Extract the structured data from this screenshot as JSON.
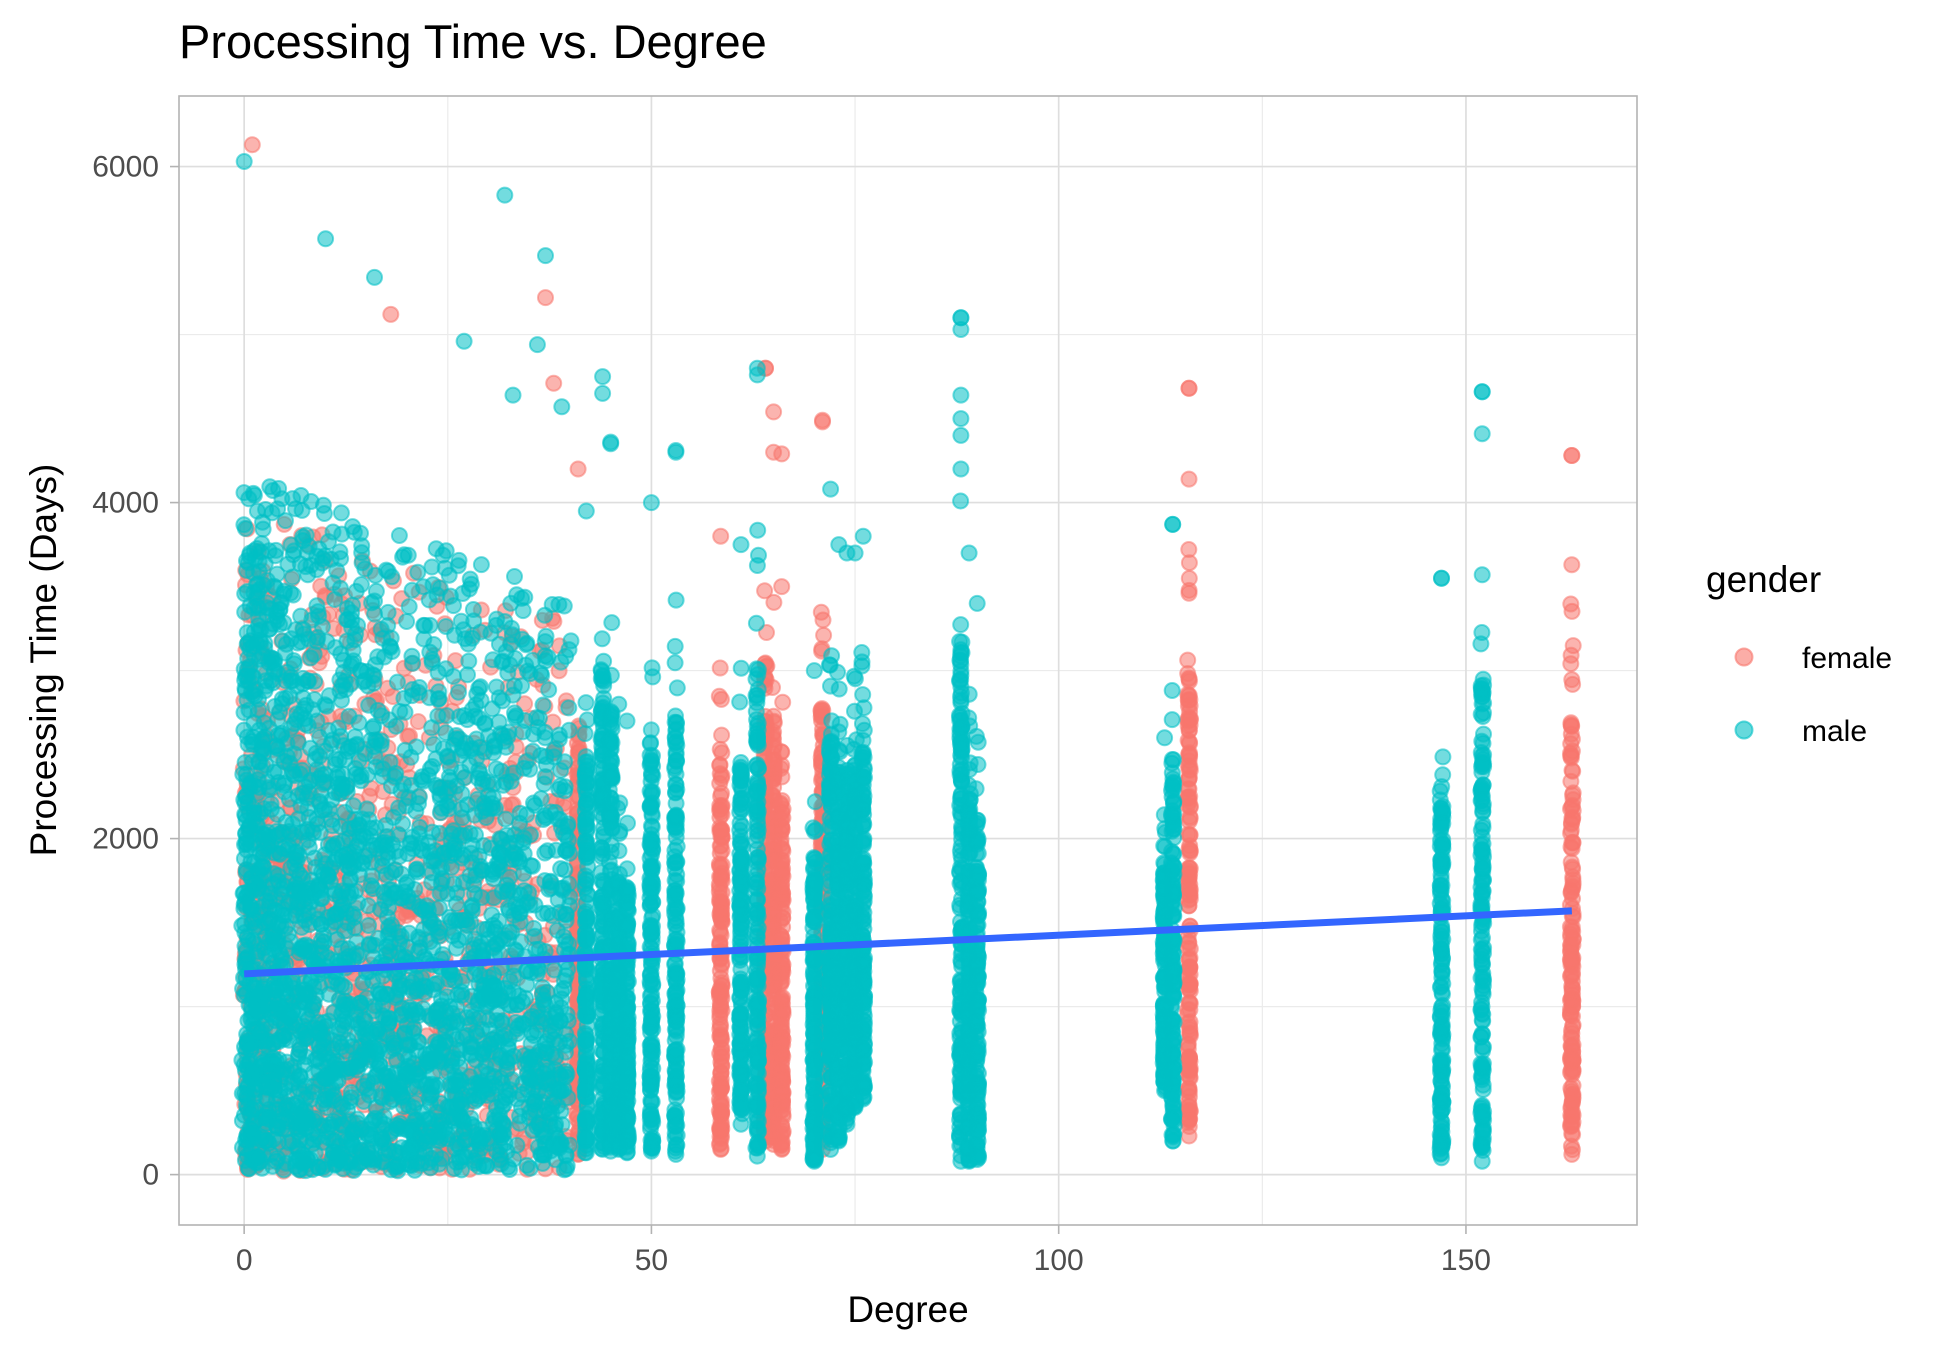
{
  "chart_data": {
    "type": "scatter",
    "title": "Processing Time vs. Degree",
    "xlabel": "Degree",
    "ylabel": "Processing Time (Days)",
    "xlim": [
      -8,
      171
    ],
    "ylim": [
      -300,
      6420
    ],
    "x_ticks": [
      0,
      50,
      100,
      150
    ],
    "y_ticks": [
      0,
      2000,
      4000,
      6000
    ],
    "x_tick_labels": [
      "0",
      "50",
      "100",
      "150"
    ],
    "y_tick_labels": [
      "0",
      "2000",
      "4000",
      "6000"
    ],
    "grid": true,
    "legend": {
      "title": "gender",
      "position": "right",
      "entries": [
        {
          "label": "female",
          "color": "#F8766D"
        },
        {
          "label": "male",
          "color": "#00BFC4"
        }
      ]
    },
    "colors": {
      "female": "#F8766D",
      "male": "#00BFC4",
      "trend": "#3366FF"
    },
    "point_opacity": 0.55,
    "trend_line": {
      "x": [
        0,
        163
      ],
      "y": [
        1195,
        1570
      ]
    },
    "dense_regions": [
      {
        "series": "male",
        "x": [
          0,
          40
        ],
        "y": [
          20,
          5200
        ],
        "count": 2600
      },
      {
        "series": "female",
        "x": [
          0,
          40
        ],
        "y": [
          20,
          5000
        ],
        "count": 1100
      }
    ],
    "columns": [
      {
        "x": 41,
        "series": "female",
        "y": [
          120,
          4200
        ]
      },
      {
        "x": 42,
        "series": "male",
        "y": [
          130,
          3950
        ]
      },
      {
        "x": 44,
        "series": "male",
        "y": [
          150,
          4750
        ]
      },
      {
        "x": 45,
        "series": "male",
        "y": [
          140,
          4350
        ]
      },
      {
        "x": 46,
        "series": "male",
        "y": [
          150,
          2800
        ]
      },
      {
        "x": 47,
        "series": "male",
        "y": [
          130,
          2700
        ]
      },
      {
        "x": 50,
        "series": "male",
        "y": [
          140,
          4000
        ]
      },
      {
        "x": 53,
        "series": "male",
        "y": [
          120,
          4300
        ]
      },
      {
        "x": 58.5,
        "series": "female",
        "y": [
          150,
          3800
        ]
      },
      {
        "x": 61,
        "series": "male",
        "y": [
          300,
          3750
        ]
      },
      {
        "x": 63,
        "series": "male",
        "y": [
          110,
          4800
        ]
      },
      {
        "x": 64,
        "series": "female",
        "y": [
          200,
          4800
        ]
      },
      {
        "x": 65,
        "series": "female",
        "y": [
          180,
          4300
        ]
      },
      {
        "x": 66,
        "series": "female",
        "y": [
          150,
          3500
        ]
      },
      {
        "x": 70,
        "series": "male",
        "y": [
          80,
          3000
        ]
      },
      {
        "x": 71,
        "series": "female",
        "y": [
          150,
          4480
        ]
      },
      {
        "x": 72,
        "series": "male",
        "y": [
          150,
          4080
        ]
      },
      {
        "x": 73,
        "series": "male",
        "y": [
          200,
          3750
        ]
      },
      {
        "x": 74,
        "series": "male",
        "y": [
          300,
          3700
        ]
      },
      {
        "x": 75,
        "series": "male",
        "y": [
          400,
          3700
        ]
      },
      {
        "x": 76,
        "series": "male",
        "y": [
          450,
          3800
        ]
      },
      {
        "x": 88,
        "series": "male",
        "y": [
          80,
          5100
        ]
      },
      {
        "x": 89,
        "series": "male",
        "y": [
          80,
          3700
        ]
      },
      {
        "x": 90,
        "series": "male",
        "y": [
          90,
          3400
        ]
      },
      {
        "x": 113,
        "series": "male",
        "y": [
          500,
          2600
        ]
      },
      {
        "x": 114,
        "series": "male",
        "y": [
          200,
          3870
        ]
      },
      {
        "x": 116,
        "series": "female",
        "y": [
          230,
          4680
        ]
      },
      {
        "x": 147,
        "series": "male",
        "y": [
          100,
          3550
        ]
      },
      {
        "x": 152,
        "series": "male",
        "y": [
          80,
          4660
        ]
      },
      {
        "x": 163,
        "series": "female",
        "y": [
          120,
          4280
        ]
      }
    ],
    "outliers": [
      {
        "x": 1,
        "y": 6130,
        "series": "female"
      },
      {
        "x": 0,
        "y": 6030,
        "series": "male"
      },
      {
        "x": 32,
        "y": 5830,
        "series": "male"
      },
      {
        "x": 37,
        "y": 5470,
        "series": "male"
      },
      {
        "x": 37,
        "y": 5220,
        "series": "female"
      },
      {
        "x": 16,
        "y": 5340,
        "series": "male"
      },
      {
        "x": 10,
        "y": 5570,
        "series": "male"
      },
      {
        "x": 18,
        "y": 5120,
        "series": "female"
      },
      {
        "x": 36,
        "y": 4940,
        "series": "male"
      },
      {
        "x": 27,
        "y": 4960,
        "series": "male"
      },
      {
        "x": 33,
        "y": 4640,
        "series": "male"
      },
      {
        "x": 38,
        "y": 4710,
        "series": "female"
      },
      {
        "x": 39,
        "y": 4570,
        "series": "male"
      },
      {
        "x": 44,
        "y": 4650,
        "series": "male"
      },
      {
        "x": 45,
        "y": 4360,
        "series": "male"
      },
      {
        "x": 53,
        "y": 4310,
        "series": "male"
      },
      {
        "x": 64,
        "y": 4800,
        "series": "female"
      },
      {
        "x": 63,
        "y": 4760,
        "series": "male"
      },
      {
        "x": 65,
        "y": 4540,
        "series": "female"
      },
      {
        "x": 66,
        "y": 4290,
        "series": "female"
      },
      {
        "x": 71,
        "y": 4490,
        "series": "female"
      },
      {
        "x": 88,
        "y": 5100,
        "series": "male"
      },
      {
        "x": 88,
        "y": 5030,
        "series": "male"
      },
      {
        "x": 88,
        "y": 4640,
        "series": "male"
      },
      {
        "x": 88,
        "y": 4500,
        "series": "male"
      },
      {
        "x": 88,
        "y": 4400,
        "series": "male"
      },
      {
        "x": 88,
        "y": 4200,
        "series": "male"
      },
      {
        "x": 114,
        "y": 3870,
        "series": "male"
      },
      {
        "x": 116,
        "y": 4680,
        "series": "female"
      },
      {
        "x": 116,
        "y": 4140,
        "series": "female"
      },
      {
        "x": 116,
        "y": 3460,
        "series": "female"
      },
      {
        "x": 147,
        "y": 3550,
        "series": "male"
      },
      {
        "x": 152,
        "y": 4660,
        "series": "male"
      },
      {
        "x": 152,
        "y": 4410,
        "series": "male"
      },
      {
        "x": 152,
        "y": 3570,
        "series": "male"
      },
      {
        "x": 163,
        "y": 4280,
        "series": "female"
      },
      {
        "x": 163,
        "y": 3630,
        "series": "female"
      },
      {
        "x": 24,
        "y": 40,
        "series": "female"
      }
    ]
  }
}
